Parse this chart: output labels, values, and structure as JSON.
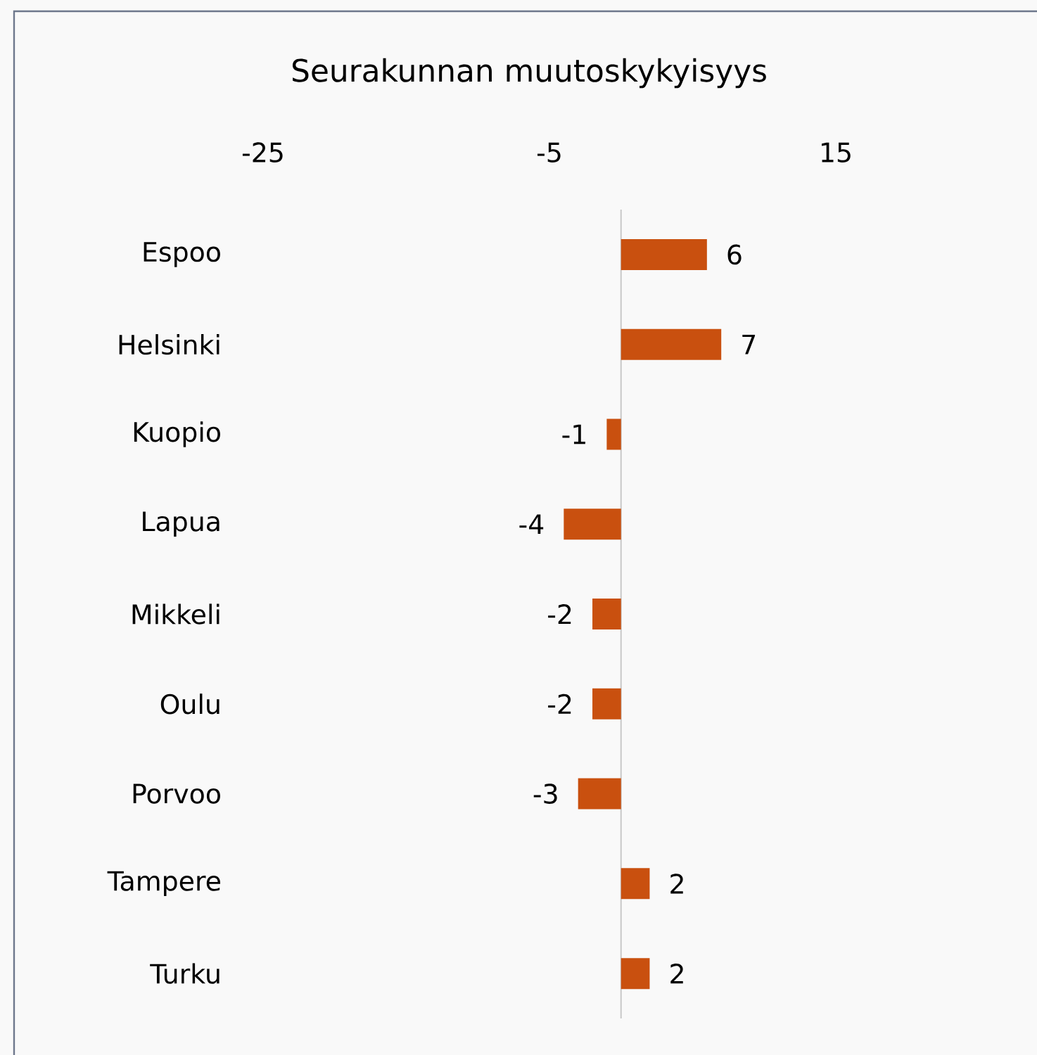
{
  "chart_data": {
    "type": "bar",
    "orientation": "horizontal",
    "title": "Seurakunnan muutoskykyisyys",
    "categories": [
      "Espoo",
      "Helsinki",
      "Kuopio",
      "Lapua",
      "Mikkeli",
      "Oulu",
      "Porvoo",
      "Tampere",
      "Turku"
    ],
    "values": [
      6,
      7,
      -1,
      -4,
      -2,
      -2,
      -3,
      2,
      2
    ],
    "color": "#c9500f",
    "data_labels": true,
    "xlim": [
      -25,
      15
    ],
    "xticks": [
      -25,
      -5,
      15
    ]
  }
}
